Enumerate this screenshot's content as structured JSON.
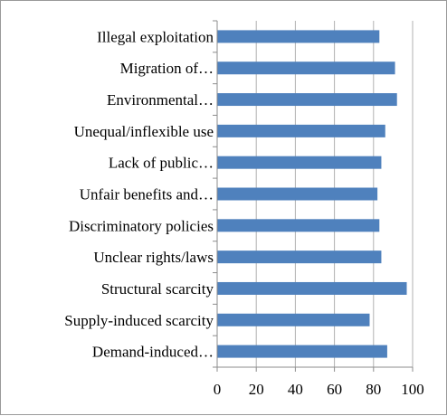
{
  "chart_data": {
    "type": "bar",
    "orientation": "horizontal",
    "categories": [
      "Illegal exploitation",
      "Migration of…",
      "Environmental…",
      "Unequal/inflexible use",
      "Lack of public…",
      "Unfair benefits and…",
      "Discriminatory policies",
      "Unclear rights/laws",
      "Structural scarcity",
      "Supply-induced scarcity",
      "Demand-induced…"
    ],
    "values": [
      83,
      91,
      92,
      86,
      84,
      82,
      83,
      84,
      97,
      78,
      87
    ],
    "xlim": [
      0,
      100
    ],
    "xticks": [
      "0",
      "20",
      "40",
      "60",
      "80",
      "100"
    ],
    "grid": true,
    "legend": "none",
    "bar_color": "#4f81bd",
    "gridline_color": "#b0b0b0",
    "axis_color": "#8c8c8c"
  }
}
